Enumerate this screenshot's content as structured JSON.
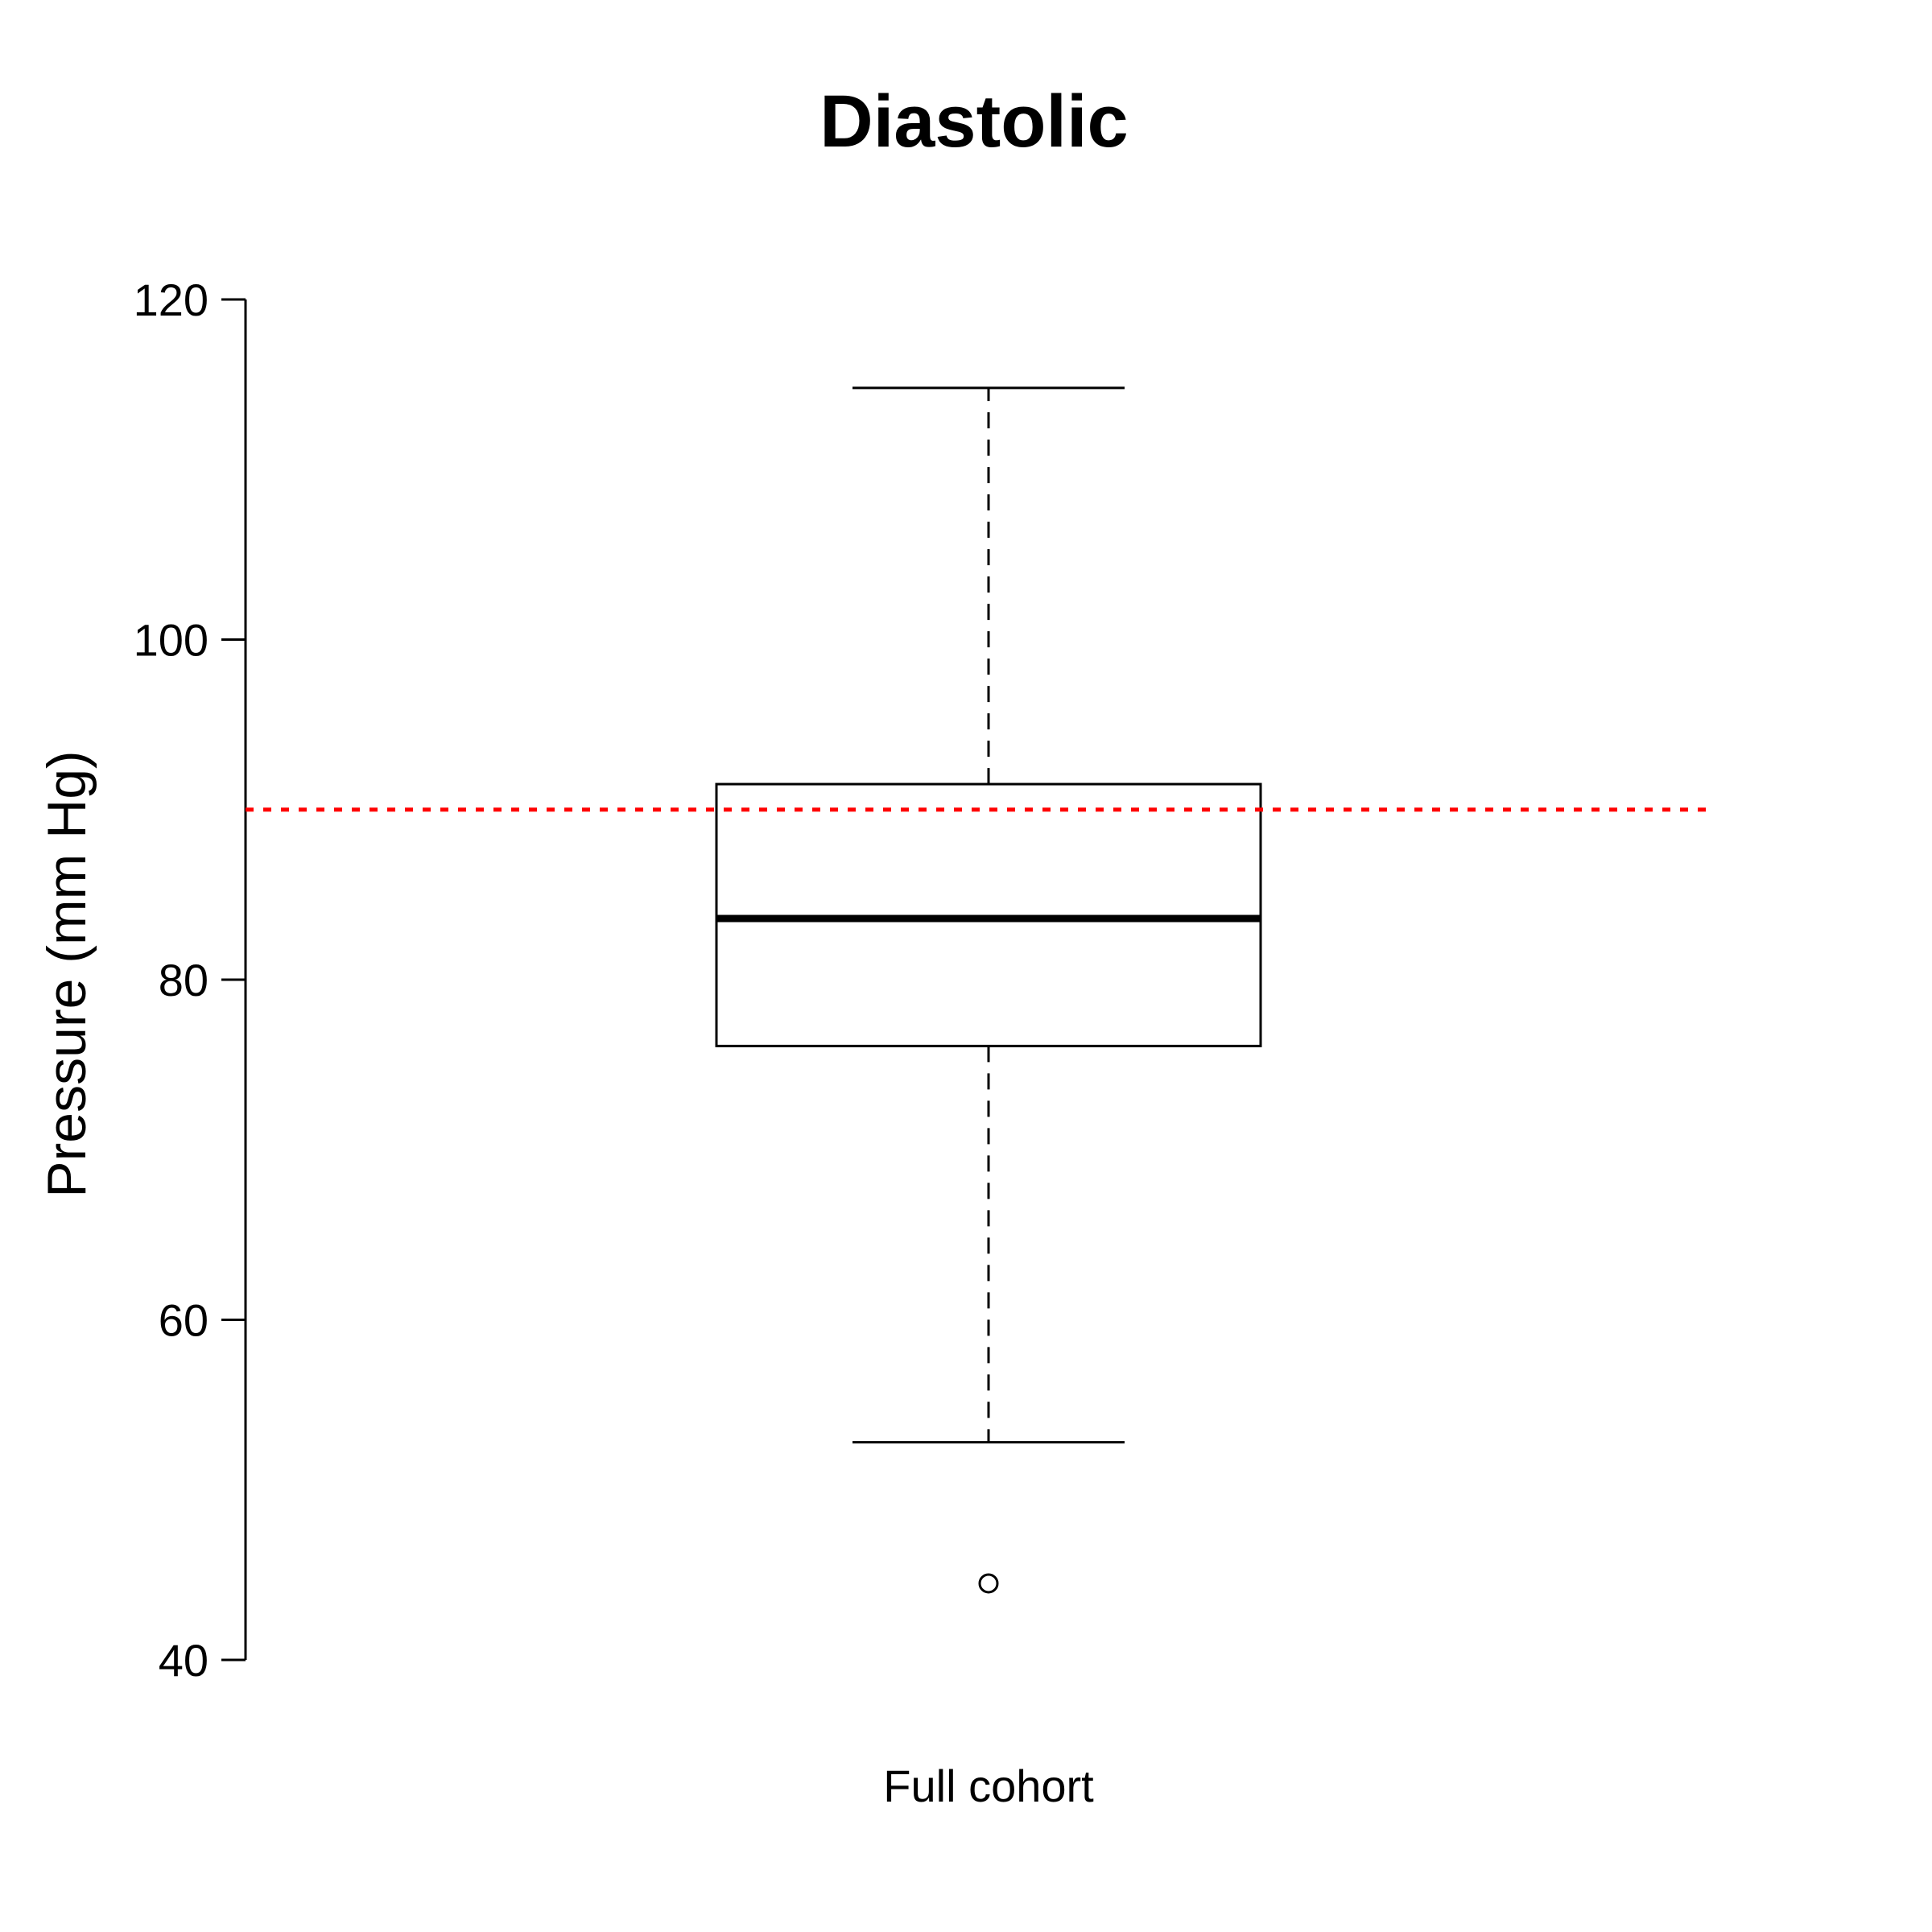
{
  "chart_data": {
    "type": "boxplot",
    "title": "Diastolic",
    "xlabel": "",
    "ylabel": "Pressure (mm Hg)",
    "ylim": [
      40,
      120
    ],
    "yticks": [
      40,
      60,
      80,
      100,
      120
    ],
    "grid": false,
    "categories": [
      "Full cohort"
    ],
    "boxes": [
      {
        "category": "Full cohort",
        "whisker_low": 52.8,
        "q1": 76.1,
        "median": 83.6,
        "q3": 91.5,
        "whisker_high": 114.8,
        "outliers": [
          44.5
        ]
      }
    ],
    "reference_line": {
      "value": 90,
      "color": "#ff0000",
      "style": "dotted"
    },
    "colors": {
      "box_border": "#000000",
      "box_fill": "#ffffff",
      "reference": "#ff0000"
    }
  }
}
